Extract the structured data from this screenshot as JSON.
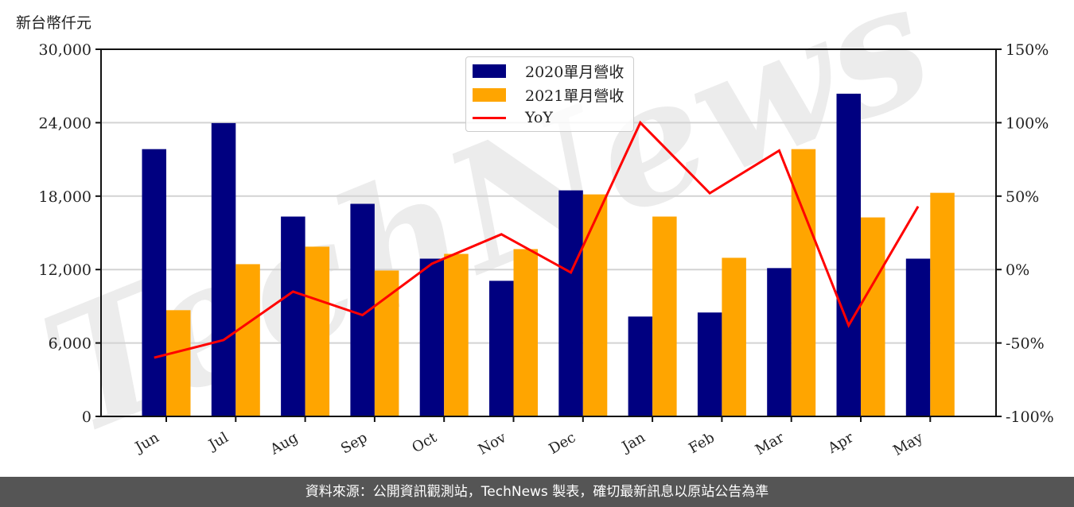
{
  "unit_label": "新台幣仟元",
  "footer": "資料來源：公開資訊觀測站，TechNews 製表，確切最新訊息以原站公告為準",
  "watermark": "TechNews",
  "legend": {
    "items": [
      {
        "label": "2020單月營收",
        "type": "bar",
        "color": "#000080"
      },
      {
        "label": "2021單月營收",
        "type": "bar",
        "color": "#FFA500"
      },
      {
        "label": "YoY",
        "type": "line",
        "color": "#FF0000"
      }
    ]
  },
  "chart_data": {
    "type": "bar",
    "title": "",
    "xlabel": "",
    "ylabel": "新台幣仟元",
    "ylim": [
      0,
      30000
    ],
    "y2lim": [
      -100,
      150
    ],
    "y_ticks": [
      "0",
      "6,000",
      "12,000",
      "18,000",
      "24,000",
      "30,000"
    ],
    "y_tick_values": [
      0,
      6000,
      12000,
      18000,
      24000,
      30000
    ],
    "y2_ticks": [
      "-100%",
      "-50%",
      "0%",
      "50%",
      "100%",
      "150%"
    ],
    "y2_tick_values": [
      -100,
      -50,
      0,
      50,
      100,
      150
    ],
    "grid": true,
    "legend_position": "upper center",
    "categories": [
      "Jun",
      "Jul",
      "Aug",
      "Sep",
      "Oct",
      "Nov",
      "Dec",
      "Jan",
      "Feb",
      "Mar",
      "Apr",
      "May"
    ],
    "series": [
      {
        "name": "2020單月營收",
        "type": "bar",
        "axis": "left",
        "color": "#000080",
        "values": [
          21840,
          23970,
          16330,
          17370,
          12890,
          11080,
          18470,
          8160,
          8490,
          12120,
          26370,
          12890
        ]
      },
      {
        "name": "2021單月營收",
        "type": "bar",
        "axis": "left",
        "color": "#FFA500",
        "values": [
          8680,
          12440,
          13870,
          11920,
          13280,
          13670,
          18140,
          16330,
          12960,
          21840,
          16260,
          18270
        ]
      },
      {
        "name": "YoY",
        "type": "line",
        "axis": "right",
        "color": "#FF0000",
        "unit": "%",
        "values": [
          -60,
          -48,
          -15,
          -31,
          4,
          24,
          -2,
          100,
          52,
          81,
          -38,
          43
        ]
      }
    ]
  }
}
